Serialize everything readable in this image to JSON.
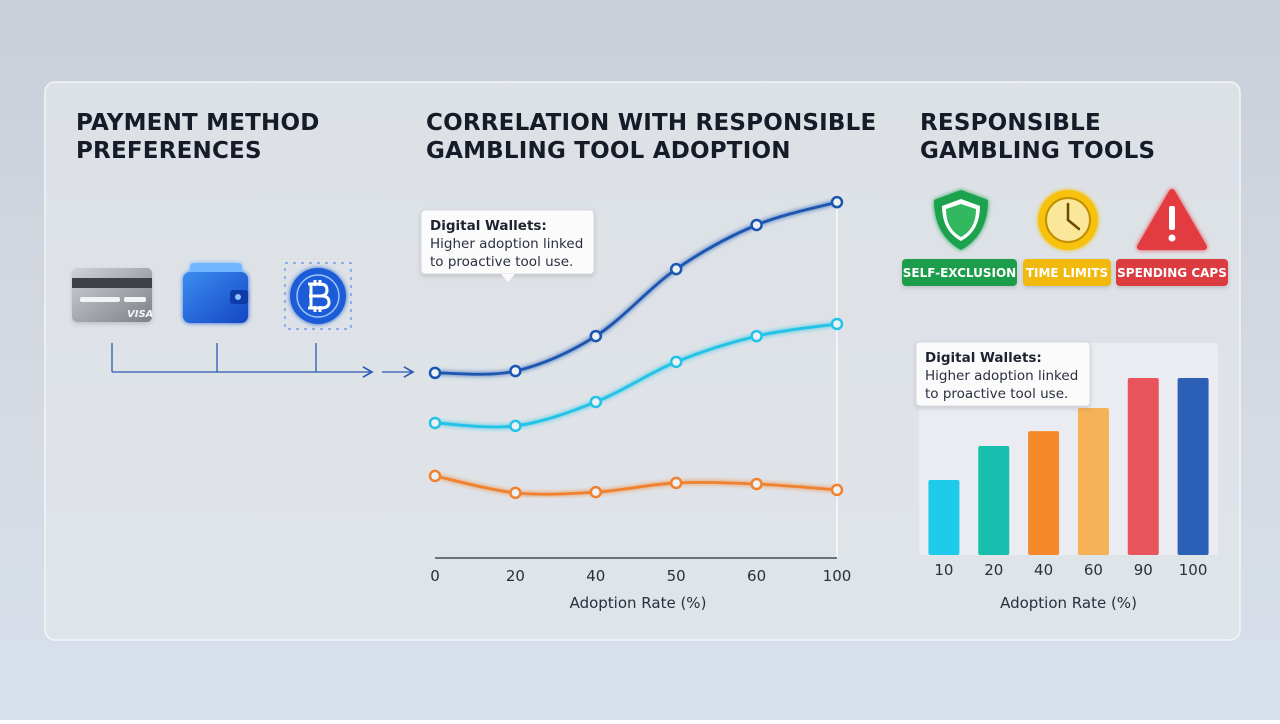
{
  "payment_panel": {
    "title": [
      "PAYMENT METHOD",
      "PREFERENCES"
    ],
    "card_brand": "VISA"
  },
  "tools_panel": {
    "title": [
      "RESPONSIBLE",
      "GAMBLING TOOLS"
    ],
    "tools": [
      {
        "label": "SELF-EXCLUSION",
        "color": "#1f9d4c"
      },
      {
        "label": "TIME LIMITS",
        "color": "#f2b90f"
      },
      {
        "label": "SPENDING CAPS",
        "color": "#dc3a3f"
      }
    ]
  },
  "chart_data": [
    {
      "type": "line",
      "title": [
        "CORRELATION WITH RESPONSIBLE",
        "GAMBLING TOOL ADOPTION"
      ],
      "categories": [
        "0",
        "20",
        "40",
        "50",
        "60",
        "100"
      ],
      "series": [
        {
          "color": "#1a56b0",
          "values": [
            50.3,
            50.8,
            60.3,
            78.5,
            90.5,
            96.7
          ]
        },
        {
          "color": "#22c3e6",
          "values": [
            36.7,
            35.9,
            42.4,
            53.3,
            60.3,
            63.6
          ]
        },
        {
          "color": "#f0812e",
          "values": [
            22.3,
            17.7,
            17.9,
            20.4,
            20.1,
            18.5
          ]
        }
      ],
      "ylim": [
        0,
        100
      ],
      "xlabel": "Adoption Rate (%)",
      "annotation": {
        "title": "Digital Wallets:",
        "lines": [
          "Higher adoption linked",
          "to proactive tool use."
        ]
      }
    },
    {
      "type": "bar",
      "categories": [
        "10",
        "20",
        "40",
        "60",
        "90",
        "100"
      ],
      "values": [
        35.7,
        51.9,
        59.0,
        70.0,
        84.3,
        84.3
      ],
      "colors": [
        "#1fcbea",
        "#19bfae",
        "#f5892a",
        "#f6b157",
        "#e8545b",
        "#2c5fb6"
      ],
      "ylim": [
        0,
        100
      ],
      "xlabel": "Adoption Rate (%)",
      "annotation": {
        "title": "Digital Wallets:",
        "lines": [
          "Higher adoption linked",
          "to proactive tool use."
        ]
      }
    }
  ]
}
